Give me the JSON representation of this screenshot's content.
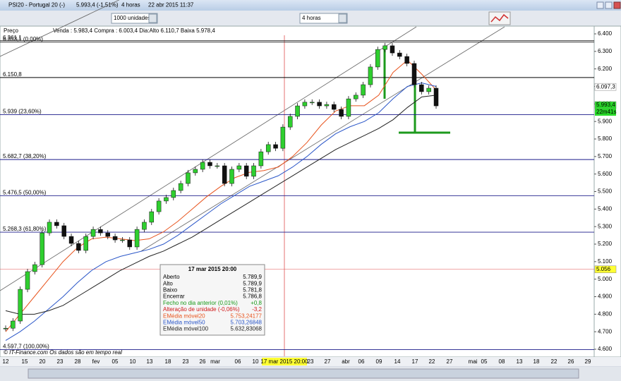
{
  "window": {
    "title": "PSI20 - Portugal 20 (-)",
    "price": "5.993,4 (-1,51%)",
    "period": "4 horas",
    "datetime": "22 abr 2015 11:37"
  },
  "toolbar": {
    "units": "1000 unidades",
    "interval": "4 horas"
  },
  "quote_bar": {
    "label": "Preço",
    "text": "Venda : 5.983,4 Compra : 6.003,4 Dia:Alto 6.110,7 Baixa 5.978,4"
  },
  "chart_data": {
    "type": "candlestick",
    "ylim": [
      4600,
      6400
    ],
    "yticks": [
      {
        "value": 4600,
        "label": "4.600"
      },
      {
        "value": 4700,
        "label": "4.700"
      },
      {
        "value": 4800,
        "label": "4.800"
      },
      {
        "value": 4900,
        "label": "4.900"
      },
      {
        "value": 5000,
        "label": "5.000"
      },
      {
        "value": 5100,
        "label": "5.100"
      },
      {
        "value": 5200,
        "label": "5.200"
      },
      {
        "value": 5300,
        "label": "5.300"
      },
      {
        "value": 5400,
        "label": "5.400"
      },
      {
        "value": 5500,
        "label": "5.500"
      },
      {
        "value": 5600,
        "label": "5.600"
      },
      {
        "value": 5700,
        "label": "5.700"
      },
      {
        "value": 5800,
        "label": "5.800"
      },
      {
        "value": 5900,
        "label": "5.900"
      },
      {
        "value": 6000,
        "label": "6.000"
      },
      {
        "value": 6100,
        "label": "6.100"
      },
      {
        "value": 6200,
        "label": "6.200"
      },
      {
        "value": 6300,
        "label": "6.300"
      },
      {
        "value": 6400,
        "label": "6.400"
      }
    ],
    "x_labels": [
      "12",
      "15",
      "20",
      "23",
      "28",
      "fev",
      "05",
      "10",
      "13",
      "18",
      "23",
      "26",
      "mar",
      "06",
      "10",
      "17 mar 2015 20:00",
      "23",
      "27",
      "abr",
      "06",
      "09",
      "14",
      "17",
      "22",
      "27",
      "mai",
      "05",
      "08",
      "13",
      "18",
      "22",
      "26",
      "29"
    ],
    "closes": [
      4720,
      4761,
      4942,
      5043,
      5083,
      5264,
      5325,
      5305,
      5244,
      5204,
      5164,
      5244,
      5284,
      5264,
      5244,
      5224,
      5224,
      5184,
      5284,
      5325,
      5385,
      5446,
      5466,
      5506,
      5546,
      5607,
      5627,
      5667,
      5647,
      5647,
      5546,
      5627,
      5647,
      5587,
      5647,
      5727,
      5768,
      5747,
      5868,
      5929,
      5989,
      6010,
      6010,
      5989,
      5997,
      5969,
      5929,
      6029,
      6050,
      6110,
      6211,
      6311,
      6332,
      6291,
      6271,
      6231,
      6110,
      6070,
      6090,
      5989
    ],
    "series": [
      {
        "color": "#e8541e",
        "values": [
          4700,
          4800,
          4900,
          5000,
          5100,
          5180,
          5230,
          5240,
          5230,
          5220,
          5230,
          5270,
          5330,
          5400,
          5470,
          5530,
          5580,
          5610,
          5620,
          5640,
          5700,
          5780,
          5880,
          5960,
          5990,
          5990,
          6050,
          6180,
          6250,
          6170,
          6080
        ]
      },
      {
        "color": "#2a56c8",
        "values": [
          4650,
          4700,
          4760,
          4830,
          4900,
          4980,
          5050,
          5100,
          5130,
          5150,
          5170,
          5200,
          5250,
          5310,
          5370,
          5430,
          5480,
          5530,
          5560,
          5590,
          5640,
          5700,
          5770,
          5830,
          5870,
          5900,
          5950,
          6030,
          6100,
          6120,
          6100
        ]
      },
      {
        "color": "#222222",
        "values": [
          4820,
          4800,
          4800,
          4820,
          4850,
          4900,
          4950,
          5000,
          5050,
          5090,
          5130,
          5160,
          5200,
          5240,
          5290,
          5340,
          5390,
          5440,
          5490,
          5540,
          5590,
          5640,
          5690,
          5740,
          5780,
          5820,
          5860,
          5910,
          5980,
          6040,
          6050
        ]
      }
    ],
    "levels": [
      {
        "value": 6361.1,
        "label": "6.361,1",
        "color": "#222222"
      },
      {
        "value": 6353.1,
        "label": "6.353,1 (0,00%)",
        "color": "#222222"
      },
      {
        "value": 6150.8,
        "label": "6.150,8",
        "color": "#000000"
      },
      {
        "value": 5939,
        "label": "5.939 (23,60%)",
        "color": "#1a1a8a"
      },
      {
        "value": 5682.7,
        "label": "5.682,7 (38,20%)",
        "color": "#1a1a8a"
      },
      {
        "value": 5476.5,
        "label": "5.476,5 (50,00%)",
        "color": "#1a1a8a"
      },
      {
        "value": 5268.3,
        "label": "5.268,3 (61,80%)",
        "color": "#1a1a8a"
      },
      {
        "value": 4597.7,
        "label": "4.597,7 (100,00%)",
        "color": "#1a1a8a"
      }
    ],
    "price_tags": [
      {
        "value": 6097.3,
        "label": "6.097,3",
        "color": "#ffffff"
      },
      {
        "value": 5993.4,
        "label": "5.993,4",
        "color": "#29d829"
      },
      {
        "value": 5056,
        "label": "5.056",
        "color": "#ffff33"
      }
    ],
    "alert_value": 5056,
    "countdown": "22m41s"
  },
  "tooltip": {
    "title": "17 mar 2015 20:00",
    "rows": [
      {
        "label": "Aberto",
        "value": "5.789,9",
        "color": "#000000"
      },
      {
        "label": "Alto",
        "value": "5.789,9",
        "color": "#000000"
      },
      {
        "label": "Baixo",
        "value": "5.781,8",
        "color": "#000000"
      },
      {
        "label": "Encerrar",
        "value": "5.786,8",
        "color": "#000000"
      },
      {
        "label": "Fecho no dia anterior (0,01%)",
        "value": "+0,8",
        "color": "#1a9a1a"
      },
      {
        "label": "Alteração de unidade (-0,06%)",
        "value": "-3,2",
        "color": "#d01818"
      },
      {
        "label": "EMédia móvel20",
        "value": "5.753,24177",
        "color": "#e8541e"
      },
      {
        "label": "EMédia móvel50",
        "value": "5.703,26848",
        "color": "#2a56c8"
      },
      {
        "label": "EMédia móvel100",
        "value": "5.632,83068",
        "color": "#222222"
      }
    ]
  },
  "footer": "© IT-Finance.com  Os dados são em tempo real"
}
